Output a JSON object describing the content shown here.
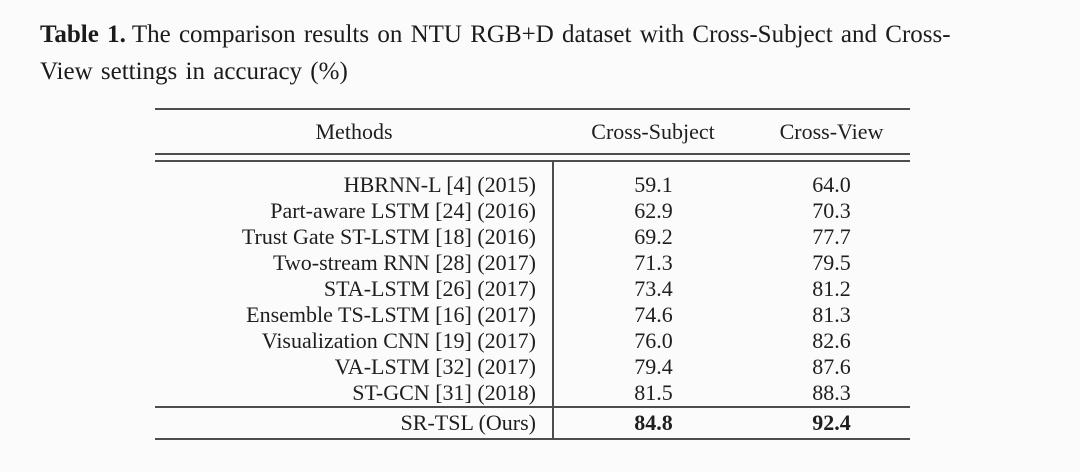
{
  "caption": {
    "label": "Table 1.",
    "text": "The comparison results on NTU RGB+D dataset with Cross-Subject and Cross-View settings in accuracy (%)"
  },
  "table": {
    "headers": [
      "Methods",
      "Cross-Subject",
      "Cross-View"
    ],
    "rows": [
      {
        "method": "HBRNN-L [4] (2015)",
        "cross_subject": "59.1",
        "cross_view": "64.0"
      },
      {
        "method": "Part-aware LSTM [24] (2016)",
        "cross_subject": "62.9",
        "cross_view": "70.3"
      },
      {
        "method": "Trust Gate ST-LSTM [18] (2016)",
        "cross_subject": "69.2",
        "cross_view": "77.7"
      },
      {
        "method": "Two-stream RNN [28] (2017)",
        "cross_subject": "71.3",
        "cross_view": "79.5"
      },
      {
        "method": "STA-LSTM [26] (2017)",
        "cross_subject": "73.4",
        "cross_view": "81.2"
      },
      {
        "method": "Ensemble TS-LSTM [16] (2017)",
        "cross_subject": "74.6",
        "cross_view": "81.3"
      },
      {
        "method": "Visualization CNN [19] (2017)",
        "cross_subject": "76.0",
        "cross_view": "82.6"
      },
      {
        "method": "VA-LSTM [32] (2017)",
        "cross_subject": "79.4",
        "cross_view": "87.6"
      },
      {
        "method": "ST-GCN [31] (2018)",
        "cross_subject": "81.5",
        "cross_view": "88.3"
      }
    ],
    "final_row": {
      "method": "SR-TSL (Ours)",
      "cross_subject": "84.8",
      "cross_view": "92.4"
    }
  },
  "colors": {
    "text": "#1b1b1b",
    "rule": "#4d4d4d",
    "background": "#fbfbfb"
  }
}
